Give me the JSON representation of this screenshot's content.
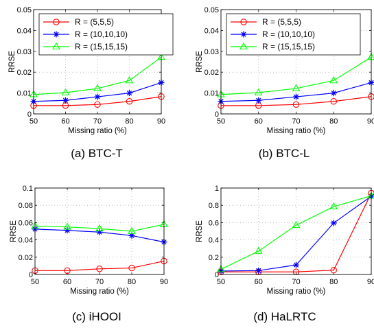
{
  "chart_data": [
    {
      "type": "line",
      "caption": "(a) BTC-T",
      "xlabel": "Missing ratio (%)",
      "ylabel": "RRSE",
      "xlim": [
        50,
        90
      ],
      "ylim": [
        0,
        0.05
      ],
      "xticks": [
        50,
        60,
        70,
        80,
        90
      ],
      "yticks": [
        0,
        0.01,
        0.02,
        0.03,
        0.04,
        0.05
      ],
      "ytick_labels": [
        "0",
        "0.01",
        "0.02",
        "0.03",
        "0.04",
        "0.05"
      ],
      "grid": true,
      "legend_position": "top-left",
      "x": [
        50,
        60,
        70,
        80,
        90
      ],
      "series": [
        {
          "name": "R = (5,5,5)",
          "values": [
            0.004,
            0.004,
            0.0045,
            0.006,
            0.0083
          ],
          "color": "#ff0000",
          "marker": "circle"
        },
        {
          "name": "R = (10,10,10)",
          "values": [
            0.006,
            0.0065,
            0.0082,
            0.01,
            0.015
          ],
          "color": "#0000ff",
          "marker": "star"
        },
        {
          "name": "R = (15,15,15)",
          "values": [
            0.0093,
            0.0102,
            0.0122,
            0.016,
            0.0272
          ],
          "color": "#00ff00",
          "marker": "triangle"
        }
      ]
    },
    {
      "type": "line",
      "caption": "(b) BTC-L",
      "xlabel": "Missing ratio (%)",
      "ylabel": "RRSE",
      "xlim": [
        50,
        90
      ],
      "ylim": [
        0,
        0.05
      ],
      "xticks": [
        50,
        60,
        70,
        80,
        90
      ],
      "yticks": [
        0,
        0.01,
        0.02,
        0.03,
        0.04,
        0.05
      ],
      "ytick_labels": [
        "0",
        "0.01",
        "0.02",
        "0.03",
        "0.04",
        "0.05"
      ],
      "grid": true,
      "legend_position": "top-left",
      "x": [
        50,
        60,
        70,
        80,
        90
      ],
      "series": [
        {
          "name": "R = (5,5,5)",
          "values": [
            0.004,
            0.004,
            0.0045,
            0.006,
            0.0083
          ],
          "color": "#ff0000",
          "marker": "circle"
        },
        {
          "name": "R = (10,10,10)",
          "values": [
            0.006,
            0.0065,
            0.0082,
            0.01,
            0.015
          ],
          "color": "#0000ff",
          "marker": "star"
        },
        {
          "name": "R = (15,15,15)",
          "values": [
            0.0093,
            0.0102,
            0.0122,
            0.016,
            0.0272
          ],
          "color": "#00ff00",
          "marker": "triangle"
        }
      ]
    },
    {
      "type": "line",
      "caption": "(c) iHOOI",
      "xlabel": "Missing ratio (%)",
      "ylabel": "RRSE",
      "xlim": [
        50,
        90
      ],
      "ylim": [
        0,
        0.1
      ],
      "xticks": [
        50,
        60,
        70,
        80,
        90
      ],
      "yticks": [
        0,
        0.02,
        0.04,
        0.06,
        0.08,
        0.1
      ],
      "ytick_labels": [
        "0",
        "0.02",
        "0.04",
        "0.06",
        "0.08",
        "0.1"
      ],
      "grid": true,
      "x": [
        50,
        60,
        70,
        80,
        90
      ],
      "series": [
        {
          "values": [
            0.0045,
            0.0045,
            0.0065,
            0.0075,
            0.0155
          ],
          "color": "#ff0000",
          "marker": "circle"
        },
        {
          "values": [
            0.0525,
            0.051,
            0.049,
            0.045,
            0.0375
          ],
          "color": "#0000ff",
          "marker": "star"
        },
        {
          "values": [
            0.056,
            0.055,
            0.053,
            0.05,
            0.058
          ],
          "color": "#00ff00",
          "marker": "triangle"
        }
      ]
    },
    {
      "type": "line",
      "caption": "(d) HaLRTC",
      "xlabel": "Missing ratio (%)",
      "ylabel": "RRSE",
      "xlim": [
        50,
        90
      ],
      "ylim": [
        0,
        1
      ],
      "xticks": [
        50,
        60,
        70,
        80,
        90
      ],
      "yticks": [
        0,
        0.2,
        0.4,
        0.6,
        0.8,
        1
      ],
      "ytick_labels": [
        "0",
        "0.2",
        "0.4",
        "0.6",
        "0.8",
        "1"
      ],
      "grid": true,
      "x": [
        50,
        60,
        70,
        80,
        90
      ],
      "series": [
        {
          "values": [
            0.03,
            0.03,
            0.03,
            0.05,
            0.94
          ],
          "color": "#ff0000",
          "marker": "circle"
        },
        {
          "values": [
            0.04,
            0.045,
            0.11,
            0.595,
            0.905
          ],
          "color": "#0000ff",
          "marker": "star"
        },
        {
          "values": [
            0.06,
            0.27,
            0.57,
            0.785,
            0.91
          ],
          "color": "#00ff00",
          "marker": "triangle"
        }
      ]
    }
  ]
}
